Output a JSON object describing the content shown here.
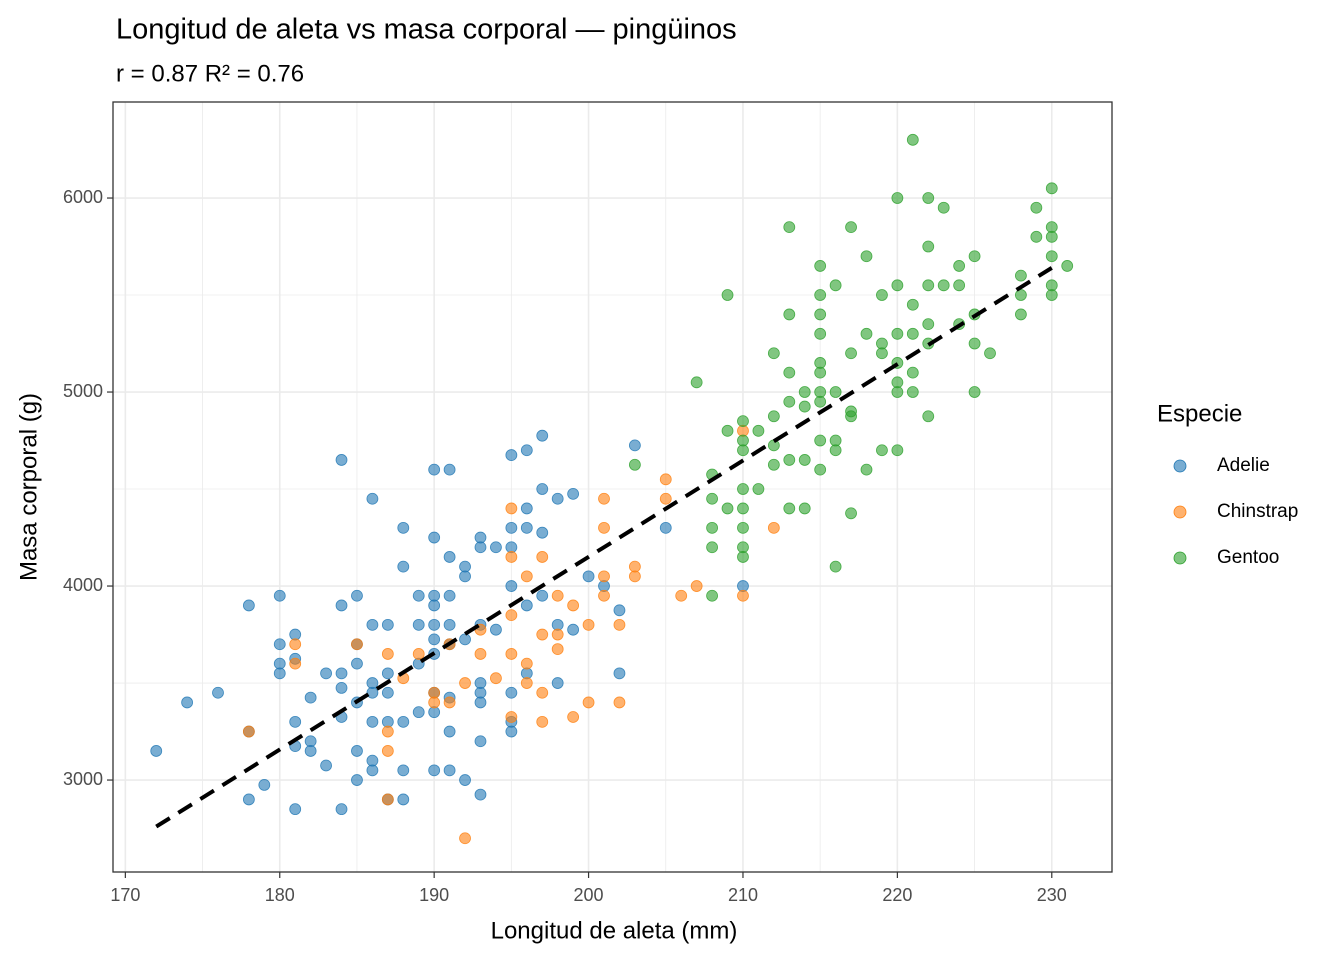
{
  "chart_data": {
    "type": "scatter",
    "title": "Longitud de aleta vs masa corporal — pingüinos",
    "subtitle": "r = 0.87   R² = 0.76",
    "x_label": "Longitud de aleta (mm)",
    "y_label": "Masa corporal (g)",
    "legend_title": "Especie",
    "legend_position": "right",
    "grid": true,
    "xlim": [
      169.2,
      233.9
    ],
    "ylim": [
      2526,
      6495
    ],
    "xticks": [
      170,
      180,
      190,
      200,
      210,
      220,
      230
    ],
    "yticks": [
      3000,
      4000,
      5000,
      6000
    ],
    "x_minor_grid": [
      175,
      185,
      195,
      205,
      215,
      225
    ],
    "y_minor_grid": [
      3500,
      4500,
      5500
    ],
    "fit_line": {
      "x": [
        172,
        230
      ],
      "values": [
        2760,
        5640
      ],
      "color": "#000000",
      "dashed": true
    },
    "series": [
      {
        "name": "Adelie",
        "color": "#1f77b4",
        "x": [
          172,
          174,
          176,
          178,
          178,
          178,
          179,
          180,
          180,
          180,
          180,
          181,
          181,
          181,
          181,
          181,
          182,
          182,
          182,
          183,
          183,
          184,
          184,
          184,
          184,
          184,
          184,
          185,
          185,
          185,
          185,
          185,
          185,
          186,
          186,
          186,
          186,
          186,
          186,
          186,
          187,
          187,
          187,
          187,
          187,
          188,
          188,
          188,
          188,
          188,
          189,
          189,
          189,
          189,
          190,
          190,
          190,
          190,
          190,
          190,
          190,
          190,
          190,
          190,
          191,
          191,
          191,
          191,
          191,
          191,
          191,
          191,
          192,
          192,
          192,
          192,
          193,
          193,
          193,
          193,
          193,
          193,
          193,
          193,
          194,
          194,
          195,
          195,
          195,
          195,
          195,
          195,
          195,
          196,
          196,
          196,
          196,
          196,
          197,
          197,
          197,
          197,
          198,
          198,
          198,
          199,
          199,
          200,
          201,
          202,
          202,
          203,
          205,
          210
        ],
        "values": [
          3150,
          3400,
          3450,
          3900,
          2900,
          3250,
          2975,
          3950,
          3700,
          3600,
          3550,
          3750,
          3625,
          3300,
          3175,
          2850,
          3425,
          3200,
          3150,
          3550,
          3075,
          4650,
          3900,
          3550,
          3475,
          3325,
          2850,
          3950,
          3700,
          3600,
          3400,
          3150,
          3000,
          4450,
          3800,
          3500,
          3450,
          3300,
          3100,
          3050,
          3800,
          3550,
          3450,
          3300,
          2900,
          4300,
          4100,
          3300,
          3050,
          2900,
          3950,
          3800,
          3600,
          3350,
          4600,
          4250,
          3950,
          3900,
          3800,
          3725,
          3650,
          3450,
          3350,
          3050,
          4600,
          4150,
          3950,
          3800,
          3700,
          3425,
          3250,
          3050,
          4100,
          4050,
          3725,
          3000,
          4250,
          4200,
          3800,
          3500,
          3450,
          3400,
          3200,
          2925,
          4200,
          3775,
          4675,
          4300,
          4200,
          4000,
          3450,
          3300,
          3250,
          4700,
          4400,
          4300,
          3900,
          3550,
          4775,
          4500,
          4275,
          3950,
          4450,
          3800,
          3500,
          4475,
          3775,
          4050,
          4000,
          3875,
          3550,
          4725,
          4300,
          4000
        ]
      },
      {
        "name": "Chinstrap",
        "color": "#ff7f0e",
        "x": [
          178,
          181,
          181,
          185,
          187,
          187,
          187,
          187,
          188,
          189,
          190,
          190,
          191,
          191,
          192,
          192,
          193,
          193,
          194,
          195,
          195,
          195,
          195,
          195,
          196,
          196,
          196,
          197,
          197,
          197,
          197,
          198,
          198,
          198,
          199,
          199,
          200,
          200,
          201,
          201,
          201,
          201,
          202,
          202,
          203,
          203,
          205,
          205,
          206,
          207,
          210,
          210,
          212
        ],
        "values": [
          3250,
          3700,
          3600,
          3700,
          3650,
          3250,
          3150,
          2900,
          3525,
          3650,
          3450,
          3400,
          3700,
          3400,
          3500,
          2700,
          3650,
          3775,
          3525,
          4400,
          4150,
          3850,
          3650,
          3325,
          4050,
          3600,
          3500,
          4150,
          3750,
          3450,
          3300,
          3950,
          3675,
          3750,
          3900,
          3325,
          3800,
          3400,
          4450,
          4300,
          4050,
          3950,
          3800,
          3400,
          4100,
          4050,
          4550,
          4450,
          3950,
          4000,
          4800,
          3950,
          4300
        ]
      },
      {
        "name": "Gentoo",
        "color": "#2ca02c",
        "x": [
          203,
          207,
          208,
          208,
          208,
          208,
          208,
          209,
          209,
          209,
          210,
          210,
          210,
          210,
          210,
          210,
          210,
          210,
          211,
          211,
          212,
          212,
          212,
          212,
          213,
          213,
          213,
          213,
          213,
          213,
          214,
          214,
          214,
          214,
          215,
          215,
          215,
          215,
          215,
          215,
          215,
          215,
          215,
          215,
          216,
          216,
          216,
          216,
          216,
          217,
          217,
          217,
          217,
          217,
          218,
          218,
          218,
          219,
          219,
          219,
          219,
          220,
          220,
          220,
          220,
          220,
          220,
          220,
          221,
          221,
          221,
          221,
          221,
          222,
          222,
          222,
          222,
          222,
          222,
          223,
          223,
          224,
          224,
          224,
          225,
          225,
          225,
          225,
          226,
          228,
          228,
          228,
          229,
          229,
          230,
          230,
          230,
          230,
          230,
          230,
          231
        ],
        "values": [
          4625,
          5050,
          4575,
          4450,
          4300,
          4200,
          3950,
          5500,
          4400,
          4800,
          4850,
          4750,
          4700,
          4500,
          4400,
          4300,
          4200,
          4150,
          4800,
          4500,
          5200,
          4875,
          4725,
          4625,
          5850,
          5400,
          5100,
          4950,
          4650,
          4400,
          5000,
          4925,
          4650,
          4400,
          5650,
          5500,
          5400,
          5300,
          5150,
          5100,
          5000,
          4950,
          4750,
          4600,
          5550,
          5000,
          4750,
          4700,
          4100,
          5850,
          5200,
          4900,
          4875,
          4375,
          5700,
          5300,
          4600,
          5500,
          5250,
          5200,
          4700,
          6000,
          5550,
          5300,
          5150,
          5050,
          5000,
          4700,
          6300,
          5450,
          5300,
          5100,
          5000,
          6000,
          5750,
          5550,
          5350,
          5250,
          4875,
          5950,
          5550,
          5650,
          5550,
          5350,
          5700,
          5400,
          5250,
          5000,
          5200,
          5600,
          5500,
          5400,
          5950,
          5800,
          6050,
          5850,
          5800,
          5700,
          5550,
          5500,
          5650
        ]
      }
    ]
  }
}
